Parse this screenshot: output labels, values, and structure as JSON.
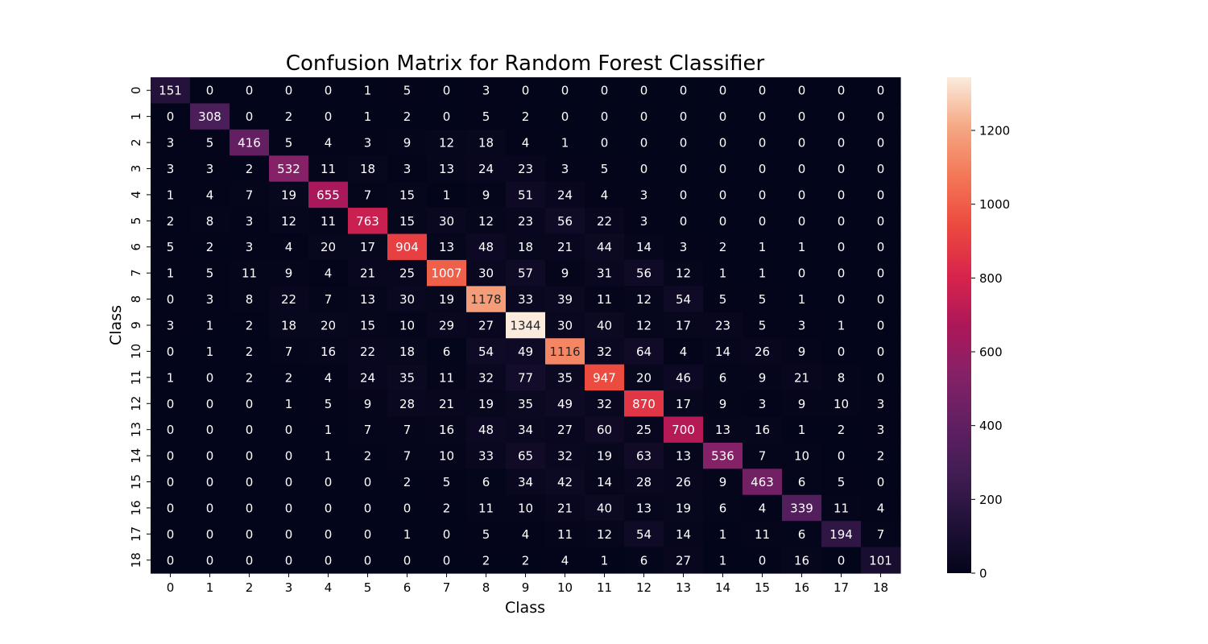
{
  "chart_data": {
    "type": "heatmap",
    "title": "Confusion Matrix for Random Forest Classifier",
    "xlabel": "Class",
    "ylabel": "Class",
    "x_categories": [
      "0",
      "1",
      "2",
      "3",
      "4",
      "5",
      "6",
      "7",
      "8",
      "9",
      "10",
      "11",
      "12",
      "13",
      "14",
      "15",
      "16",
      "17",
      "18"
    ],
    "y_categories": [
      "0",
      "1",
      "2",
      "3",
      "4",
      "5",
      "6",
      "7",
      "8",
      "9",
      "10",
      "11",
      "12",
      "13",
      "14",
      "15",
      "16",
      "17",
      "18"
    ],
    "values": [
      [
        151,
        0,
        0,
        0,
        0,
        1,
        5,
        0,
        3,
        0,
        0,
        0,
        0,
        0,
        0,
        0,
        0,
        0,
        0
      ],
      [
        0,
        308,
        0,
        2,
        0,
        1,
        2,
        0,
        5,
        2,
        0,
        0,
        0,
        0,
        0,
        0,
        0,
        0,
        0
      ],
      [
        3,
        5,
        416,
        5,
        4,
        3,
        9,
        12,
        18,
        4,
        1,
        0,
        0,
        0,
        0,
        0,
        0,
        0,
        0
      ],
      [
        3,
        3,
        2,
        532,
        11,
        18,
        3,
        13,
        24,
        23,
        3,
        5,
        0,
        0,
        0,
        0,
        0,
        0,
        0
      ],
      [
        1,
        4,
        7,
        19,
        655,
        7,
        15,
        1,
        9,
        51,
        24,
        4,
        3,
        0,
        0,
        0,
        0,
        0,
        0
      ],
      [
        2,
        8,
        3,
        12,
        11,
        763,
        15,
        30,
        12,
        23,
        56,
        22,
        3,
        0,
        0,
        0,
        0,
        0,
        0
      ],
      [
        5,
        2,
        3,
        4,
        20,
        17,
        904,
        13,
        48,
        18,
        21,
        44,
        14,
        3,
        2,
        1,
        1,
        0,
        0
      ],
      [
        1,
        5,
        11,
        9,
        4,
        21,
        25,
        1007,
        30,
        57,
        9,
        31,
        56,
        12,
        1,
        1,
        0,
        0,
        0
      ],
      [
        0,
        3,
        8,
        22,
        7,
        13,
        30,
        19,
        1178,
        33,
        39,
        11,
        12,
        54,
        5,
        5,
        1,
        0,
        0
      ],
      [
        3,
        1,
        2,
        18,
        20,
        15,
        10,
        29,
        27,
        1344,
        30,
        40,
        12,
        17,
        23,
        5,
        3,
        1,
        0
      ],
      [
        0,
        1,
        2,
        7,
        16,
        22,
        18,
        6,
        54,
        49,
        1116,
        32,
        64,
        4,
        14,
        26,
        9,
        0,
        0
      ],
      [
        1,
        0,
        2,
        2,
        4,
        24,
        35,
        11,
        32,
        77,
        35,
        947,
        20,
        46,
        6,
        9,
        21,
        8,
        0
      ],
      [
        0,
        0,
        0,
        1,
        5,
        9,
        28,
        21,
        19,
        35,
        49,
        32,
        870,
        17,
        9,
        3,
        9,
        10,
        3
      ],
      [
        0,
        0,
        0,
        0,
        1,
        7,
        7,
        16,
        48,
        34,
        27,
        60,
        25,
        700,
        13,
        16,
        1,
        2,
        3
      ],
      [
        0,
        0,
        0,
        0,
        1,
        2,
        7,
        10,
        33,
        65,
        32,
        19,
        63,
        13,
        536,
        7,
        10,
        0,
        2
      ],
      [
        0,
        0,
        0,
        0,
        0,
        0,
        2,
        5,
        6,
        34,
        42,
        14,
        28,
        26,
        9,
        463,
        6,
        5,
        0
      ],
      [
        0,
        0,
        0,
        0,
        0,
        0,
        0,
        2,
        11,
        10,
        21,
        40,
        13,
        19,
        6,
        4,
        339,
        11,
        4
      ],
      [
        0,
        0,
        0,
        0,
        0,
        0,
        1,
        0,
        5,
        4,
        11,
        12,
        54,
        14,
        1,
        11,
        6,
        194,
        7
      ],
      [
        0,
        0,
        0,
        0,
        0,
        0,
        0,
        0,
        2,
        2,
        4,
        1,
        6,
        27,
        1,
        0,
        16,
        0,
        101
      ]
    ],
    "colormap": "rocket",
    "colorbar": {
      "range": [
        0,
        1344
      ],
      "ticks": [
        0,
        200,
        400,
        600,
        800,
        1000,
        1200
      ]
    },
    "grid": false,
    "legend": "colorbar-right"
  }
}
